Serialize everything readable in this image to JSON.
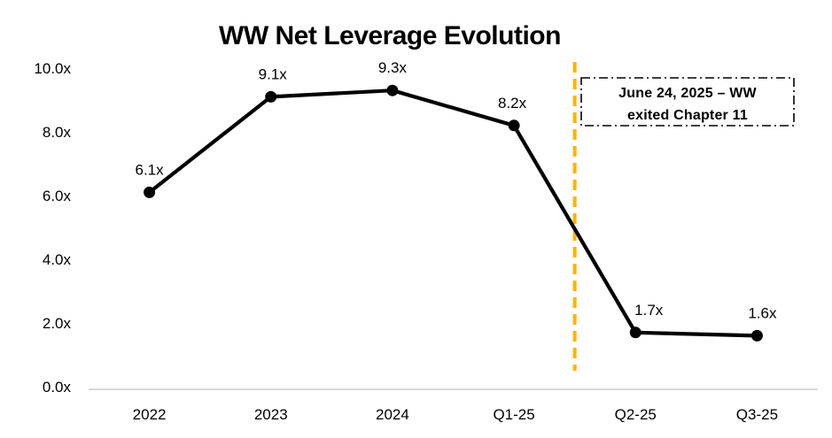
{
  "chart_data": {
    "type": "line",
    "title": "WW Net Leverage Evolution",
    "categories": [
      "2022",
      "2023",
      "2024",
      "Q1-25",
      "Q2-25",
      "Q3-25"
    ],
    "values": [
      6.1,
      9.1,
      9.3,
      8.2,
      1.7,
      1.6
    ],
    "point_labels": [
      "6.1x",
      "9.1x",
      "9.3x",
      "8.2x",
      "1.7x",
      "1.6x"
    ],
    "y_tick_values": [
      0,
      2,
      4,
      6,
      8,
      10
    ],
    "y_tick_labels": [
      "0.0x",
      "2.0x",
      "4.0x",
      "6.0x",
      "8.0x",
      "10.0x"
    ],
    "ylim": [
      0,
      10
    ],
    "grid": false,
    "legend": false,
    "series_color": "#000000",
    "axis_line_color": "#d9d9d9",
    "annotation": {
      "line1": "June 24, 2025 – WW",
      "line2": "exited Chapter 11",
      "event_line_color": "#FFB300",
      "event_line_after_category": "Q1-25"
    }
  }
}
